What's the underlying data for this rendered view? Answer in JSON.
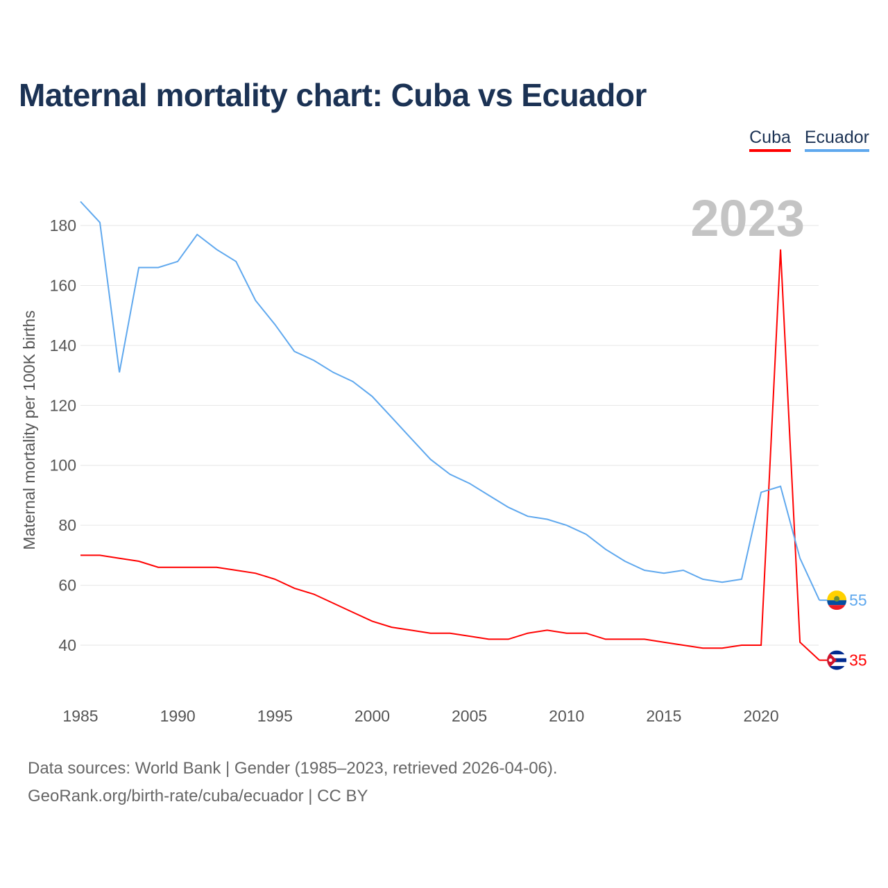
{
  "title": "Maternal mortality chart: Cuba vs Ecuador",
  "footer": {
    "line1": "Data sources: World Bank | Gender (1985–2023, retrieved 2026-04-06).",
    "line2": "GeoRank.org/birth-rate/cuba/ecuador | CC BY"
  },
  "chart_data": {
    "type": "line",
    "title": "Maternal mortality chart: Cuba vs Ecuador",
    "xlabel": "",
    "ylabel": "Maternal mortality per 100K births",
    "year_label": "2023",
    "xlim": [
      1985,
      2023
    ],
    "ylim": [
      28,
      192
    ],
    "x_ticks": [
      1985,
      1990,
      1995,
      2000,
      2005,
      2010,
      2015,
      2020
    ],
    "y_ticks": [
      40,
      60,
      80,
      100,
      120,
      140,
      160,
      180
    ],
    "grid": true,
    "legend_position": "top-right",
    "x": [
      1985,
      1986,
      1987,
      1988,
      1989,
      1990,
      1991,
      1992,
      1993,
      1994,
      1995,
      1996,
      1997,
      1998,
      1999,
      2000,
      2001,
      2002,
      2003,
      2004,
      2005,
      2006,
      2007,
      2008,
      2009,
      2010,
      2011,
      2012,
      2013,
      2014,
      2015,
      2016,
      2017,
      2018,
      2019,
      2020,
      2021,
      2022,
      2023
    ],
    "series": [
      {
        "name": "Cuba",
        "color": "#ff0000",
        "end_label": "35",
        "values": [
          70,
          70,
          69,
          68,
          66,
          66,
          66,
          66,
          65,
          64,
          62,
          59,
          57,
          54,
          51,
          48,
          46,
          45,
          44,
          44,
          43,
          42,
          42,
          44,
          45,
          44,
          44,
          42,
          42,
          42,
          41,
          40,
          39,
          39,
          40,
          40,
          172,
          41,
          35
        ]
      },
      {
        "name": "Ecuador",
        "color": "#5fa8ee",
        "end_label": "55",
        "values": [
          188,
          181,
          131,
          166,
          166,
          168,
          177,
          172,
          168,
          155,
          147,
          138,
          135,
          131,
          128,
          123,
          116,
          109,
          102,
          97,
          94,
          90,
          86,
          83,
          82,
          80,
          77,
          72,
          68,
          65,
          64,
          65,
          62,
          61,
          62,
          91,
          93,
          69,
          55
        ]
      }
    ]
  }
}
